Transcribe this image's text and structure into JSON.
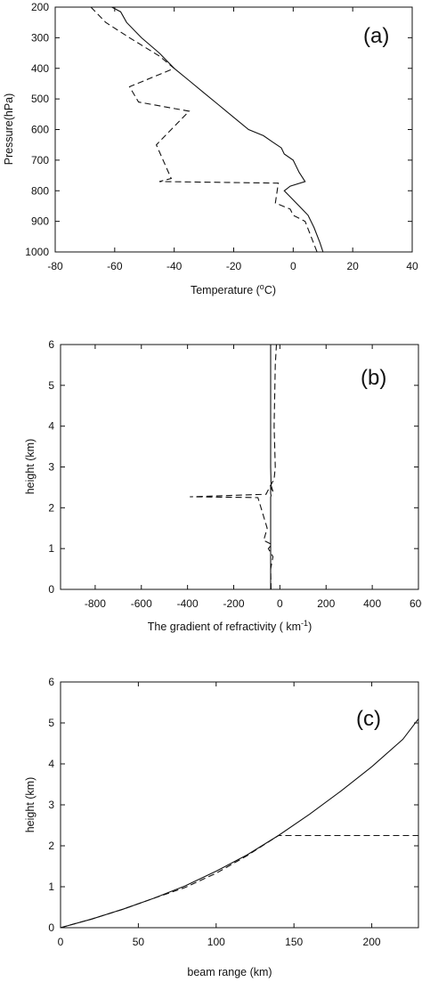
{
  "chart_data": [
    {
      "type": "line",
      "panel_label": "(a)",
      "xlabel": "Temperature (",
      "xlabel_unit_sup": "o",
      "xlabel_unit_tail": "C)",
      "ylabel": "Pressure(hPa)",
      "xlim": [
        -80,
        40
      ],
      "ylim": [
        1000,
        200
      ],
      "y_inverted": true,
      "xticks": [
        "-80",
        "-60",
        "-40",
        "-20",
        "0",
        "20",
        "40"
      ],
      "yticks": [
        "200",
        "300",
        "400",
        "500",
        "600",
        "700",
        "800",
        "900",
        "1000"
      ],
      "xtick_values": [
        -80,
        -60,
        -40,
        -20,
        0,
        20,
        40
      ],
      "ytick_values": [
        200,
        300,
        400,
        500,
        600,
        700,
        800,
        900,
        1000
      ],
      "series": [
        {
          "style": "solid",
          "x": [
            -61,
            -58,
            -56,
            -51,
            -45,
            -40,
            -35,
            -30,
            -25,
            -20,
            -15,
            -10,
            -7,
            -4,
            -3,
            0,
            2,
            4,
            -1,
            -3,
            -1,
            2,
            5,
            7,
            9,
            10
          ],
          "y": [
            200,
            215,
            250,
            300,
            350,
            400,
            440,
            480,
            520,
            560,
            600,
            620,
            640,
            660,
            680,
            700,
            740,
            770,
            785,
            800,
            820,
            850,
            880,
            920,
            970,
            1000
          ]
        },
        {
          "style": "dashed",
          "x": [
            -68,
            -63,
            -55,
            -45,
            -40,
            -55,
            -52,
            -35,
            -46,
            -41,
            -45,
            -5,
            -6,
            -1,
            0,
            4,
            6,
            8
          ],
          "y": [
            200,
            250,
            300,
            360,
            400,
            460,
            510,
            540,
            650,
            760,
            770,
            775,
            840,
            860,
            880,
            900,
            950,
            1000
          ]
        }
      ]
    },
    {
      "type": "line",
      "panel_label": "(b)",
      "xlabel": "The gradient of refractivity ( km",
      "xlabel_unit_sup": "-1",
      "xlabel_unit_tail": ")",
      "ylabel": "height (km)",
      "xlim": [
        -950,
        600
      ],
      "ylim": [
        0,
        6
      ],
      "y_inverted": false,
      "xticks": [
        "-800",
        "-600",
        "-400",
        "-200",
        "0",
        "200",
        "400",
        "600"
      ],
      "yticks": [
        "0",
        "1",
        "2",
        "3",
        "4",
        "5",
        "6"
      ],
      "xtick_values": [
        -800,
        -600,
        -400,
        -200,
        0,
        200,
        400,
        600
      ],
      "ytick_values": [
        0,
        1,
        2,
        3,
        4,
        5,
        6
      ],
      "series": [
        {
          "style": "solid",
          "x": [
            -40,
            -40,
            -40,
            -40,
            -40,
            -40,
            -40,
            -38,
            -40,
            -40,
            -30,
            -38,
            -40,
            -40,
            -40
          ],
          "y": [
            0,
            0.5,
            1.0,
            1.5,
            2.0,
            2.2,
            2.26,
            2.3,
            2.35,
            2.5,
            2.4,
            2.55,
            3.0,
            4.5,
            6.0
          ]
        },
        {
          "style": "dashed",
          "x": [
            -38,
            -40,
            -30,
            -50,
            -35,
            -70,
            -55,
            -95,
            -390,
            -60,
            -45,
            -25,
            -20,
            -25,
            -20,
            -15
          ],
          "y": [
            0,
            0.5,
            0.8,
            1.0,
            1.1,
            1.2,
            1.5,
            2.25,
            2.27,
            2.33,
            2.5,
            2.7,
            3.0,
            4.0,
            5.5,
            6.0
          ]
        }
      ]
    },
    {
      "type": "line",
      "panel_label": "(c)",
      "xlabel": "beam range (km)",
      "ylabel": "height (km)",
      "xlim": [
        0,
        230
      ],
      "ylim": [
        0,
        6
      ],
      "y_inverted": false,
      "xticks": [
        "0",
        "50",
        "100",
        "150",
        "200"
      ],
      "yticks": [
        "0",
        "1",
        "2",
        "3",
        "4",
        "5",
        "6"
      ],
      "xtick_values": [
        0,
        50,
        100,
        150,
        200
      ],
      "ytick_values": [
        0,
        1,
        2,
        3,
        4,
        5,
        6
      ],
      "series": [
        {
          "style": "solid",
          "x": [
            0,
            20,
            40,
            60,
            80,
            100,
            120,
            140,
            160,
            180,
            200,
            220,
            230
          ],
          "y": [
            0,
            0.21,
            0.45,
            0.72,
            1.02,
            1.38,
            1.78,
            2.25,
            2.77,
            3.33,
            3.93,
            4.6,
            5.1
          ]
        },
        {
          "style": "dashed",
          "x": [
            0,
            20,
            40,
            60,
            70,
            80,
            100,
            120,
            140,
            170,
            200,
            230
          ],
          "y": [
            0,
            0.21,
            0.45,
            0.72,
            0.85,
            0.98,
            1.33,
            1.76,
            2.25,
            2.25,
            2.25,
            2.25
          ]
        }
      ]
    }
  ]
}
